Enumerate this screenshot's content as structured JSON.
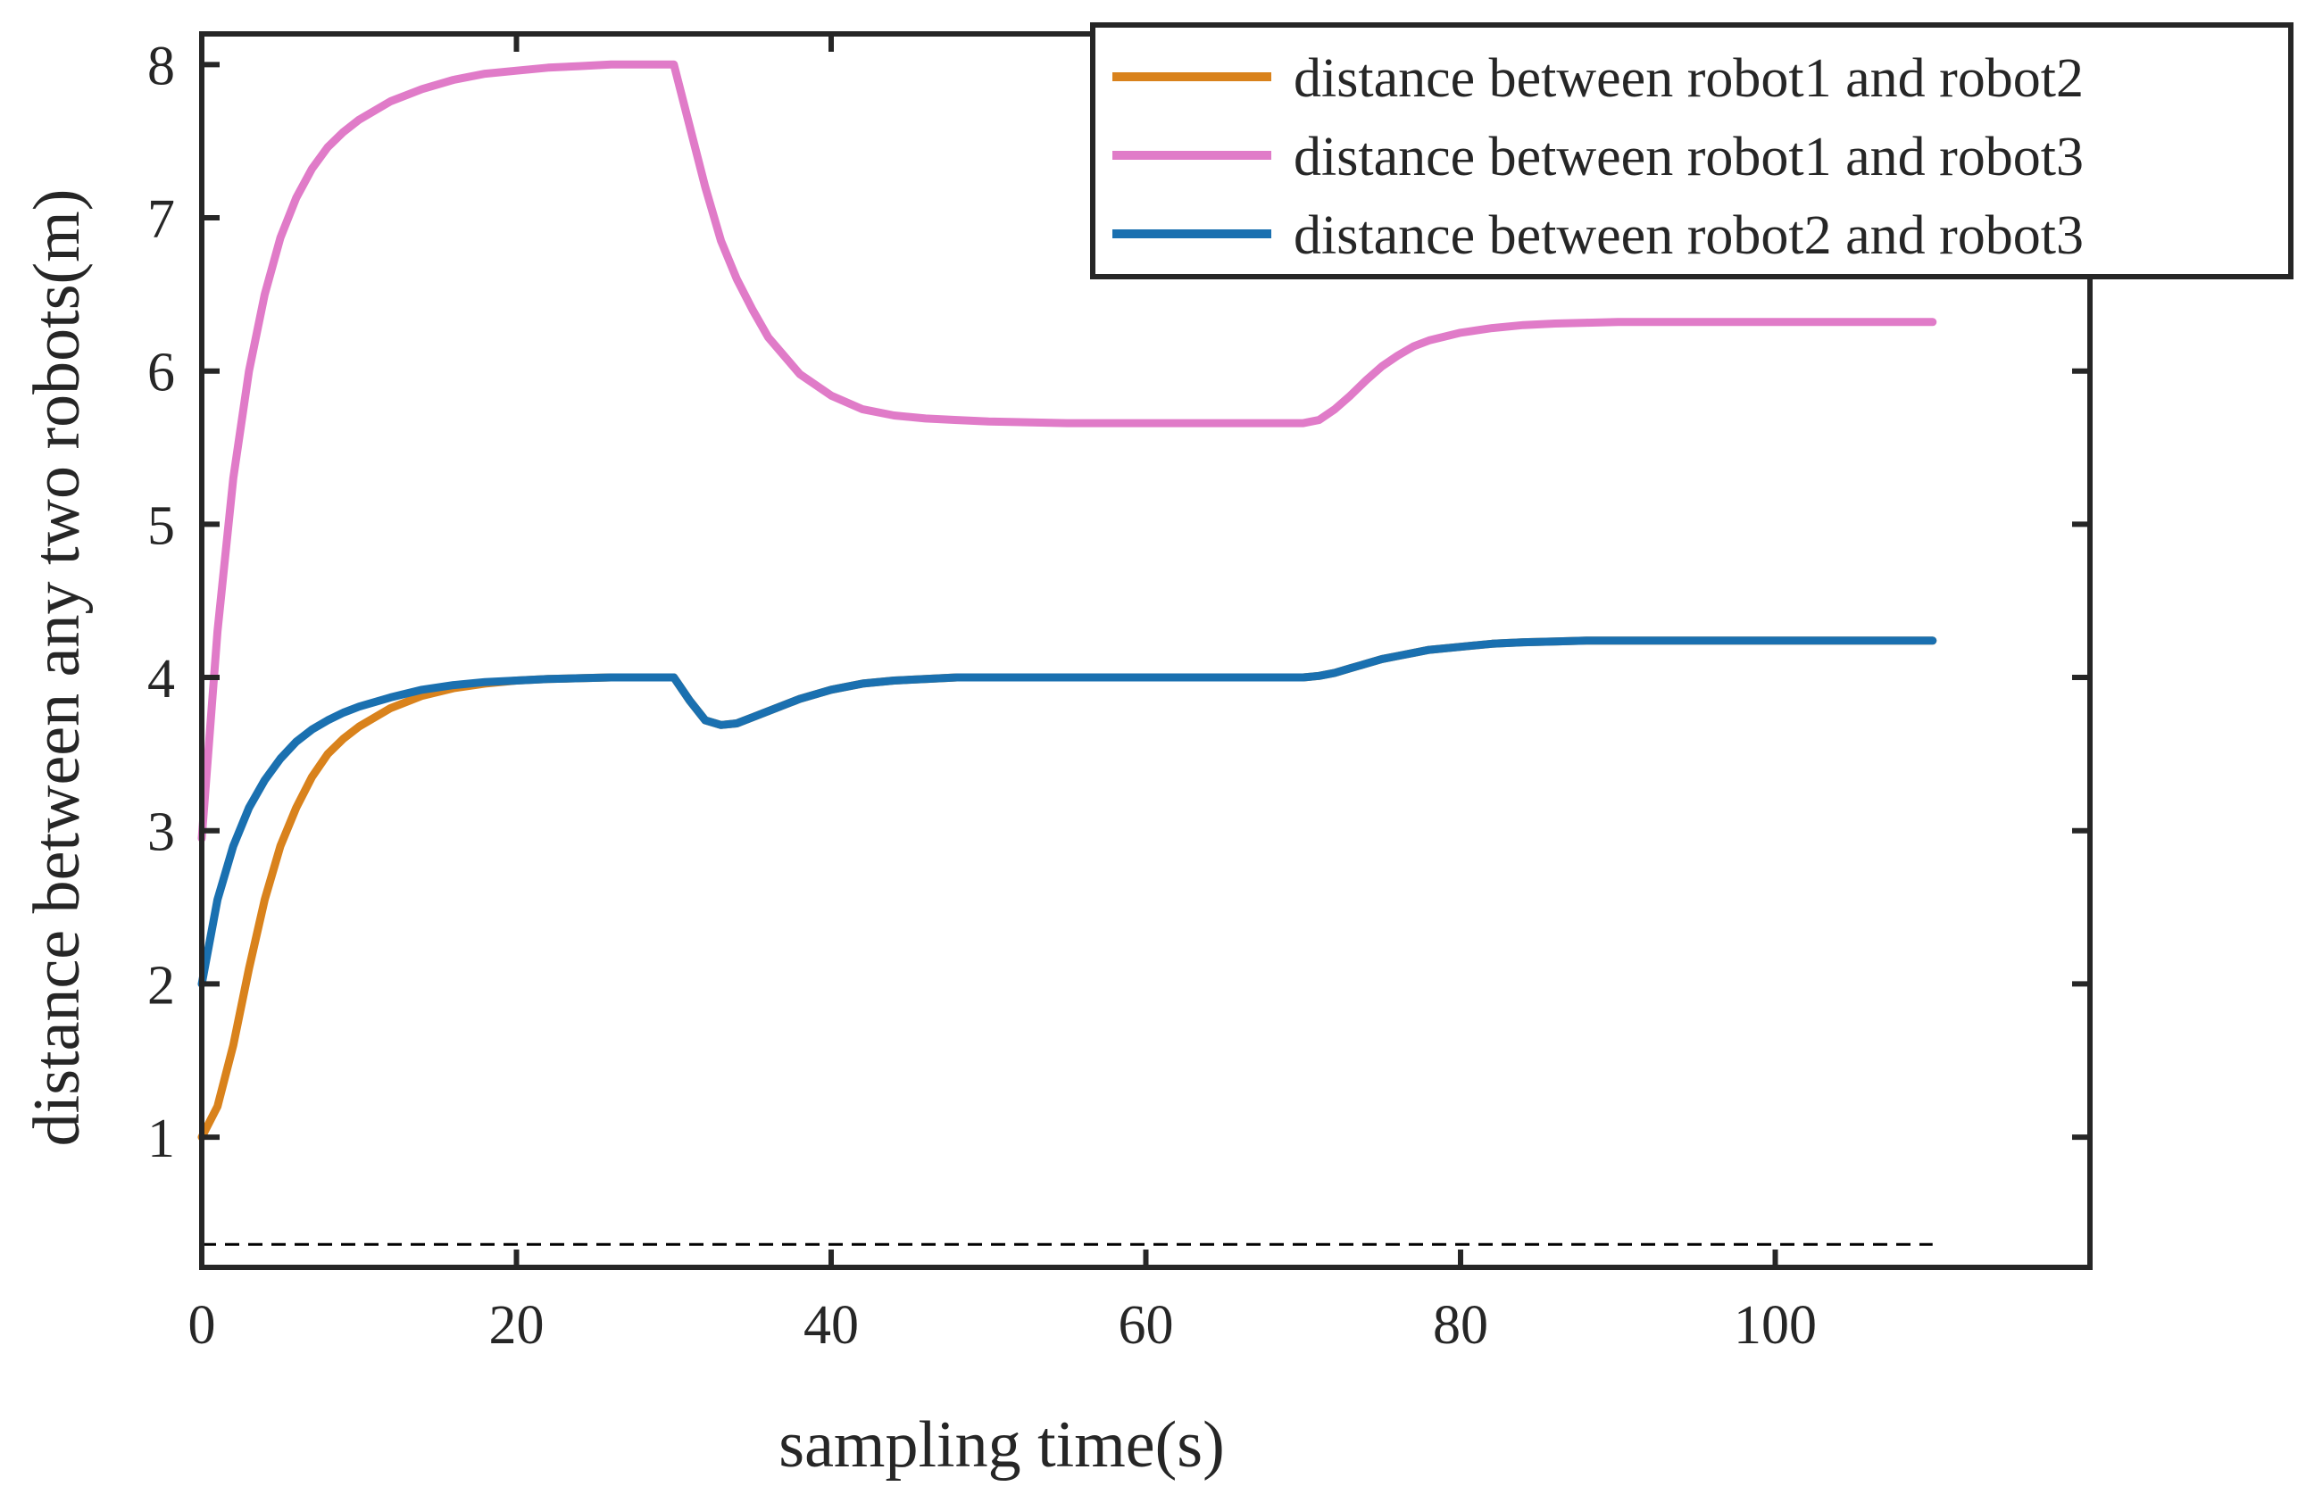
{
  "chart_data": {
    "type": "line",
    "title": "",
    "xlabel": "sampling time(s)",
    "ylabel": "distance between any two robots(m)",
    "xlim": [
      0,
      120
    ],
    "ylim": [
      0.15,
      8.2
    ],
    "xticks": [
      0,
      20,
      40,
      60,
      80,
      100
    ],
    "yticks": [
      1,
      2,
      3,
      4,
      5,
      6,
      7,
      8
    ],
    "grid": false,
    "legend_position": "top-right",
    "reference_line": {
      "y": 0.3,
      "x_range": [
        0,
        110
      ],
      "style": "dashed",
      "color": "#000000"
    },
    "x": [
      0,
      1,
      2,
      3,
      4,
      5,
      6,
      7,
      8,
      9,
      10,
      12,
      14,
      16,
      18,
      20,
      22,
      24,
      26,
      28,
      30,
      31,
      32,
      33,
      34,
      35,
      36,
      38,
      40,
      42,
      44,
      46,
      48,
      50,
      55,
      60,
      65,
      70,
      71,
      72,
      73,
      74,
      75,
      76,
      77,
      78,
      80,
      82,
      84,
      86,
      88,
      90,
      95,
      100,
      105,
      110
    ],
    "series": [
      {
        "name": "distance between robot1 and robot2",
        "color": "#D9821C",
        "values": [
          1.0,
          1.2,
          1.6,
          2.1,
          2.55,
          2.9,
          3.15,
          3.35,
          3.5,
          3.6,
          3.68,
          3.8,
          3.88,
          3.93,
          3.96,
          3.98,
          3.99,
          3.995,
          4.0,
          4.0,
          4.0,
          3.85,
          3.72,
          3.69,
          3.7,
          3.74,
          3.78,
          3.86,
          3.92,
          3.96,
          3.98,
          3.99,
          4.0,
          4.0,
          4.0,
          4.0,
          4.0,
          4.0,
          4.01,
          4.03,
          4.06,
          4.09,
          4.12,
          4.14,
          4.16,
          4.18,
          4.2,
          4.22,
          4.23,
          4.235,
          4.24,
          4.24,
          4.24,
          4.24,
          4.24,
          4.24
        ]
      },
      {
        "name": "distance between robot1 and robot3",
        "color": "#E07BC8",
        "values": [
          2.95,
          4.3,
          5.3,
          6.0,
          6.5,
          6.87,
          7.13,
          7.32,
          7.46,
          7.56,
          7.64,
          7.76,
          7.84,
          7.9,
          7.94,
          7.96,
          7.98,
          7.99,
          8.0,
          8.0,
          8.0,
          7.6,
          7.2,
          6.85,
          6.6,
          6.4,
          6.22,
          5.98,
          5.84,
          5.75,
          5.71,
          5.69,
          5.68,
          5.67,
          5.66,
          5.66,
          5.66,
          5.66,
          5.68,
          5.75,
          5.84,
          5.94,
          6.03,
          6.1,
          6.16,
          6.2,
          6.25,
          6.28,
          6.3,
          6.31,
          6.315,
          6.32,
          6.32,
          6.32,
          6.32,
          6.32
        ]
      },
      {
        "name": "distance between robot2 and robot3",
        "color": "#1A70B0",
        "values": [
          2.0,
          2.55,
          2.9,
          3.15,
          3.33,
          3.47,
          3.58,
          3.66,
          3.72,
          3.77,
          3.81,
          3.87,
          3.92,
          3.95,
          3.97,
          3.98,
          3.99,
          3.995,
          4.0,
          4.0,
          4.0,
          3.85,
          3.72,
          3.69,
          3.7,
          3.74,
          3.78,
          3.86,
          3.92,
          3.96,
          3.98,
          3.99,
          4.0,
          4.0,
          4.0,
          4.0,
          4.0,
          4.0,
          4.01,
          4.03,
          4.06,
          4.09,
          4.12,
          4.14,
          4.16,
          4.18,
          4.2,
          4.22,
          4.23,
          4.235,
          4.24,
          4.24,
          4.24,
          4.24,
          4.24,
          4.24
        ]
      }
    ]
  }
}
